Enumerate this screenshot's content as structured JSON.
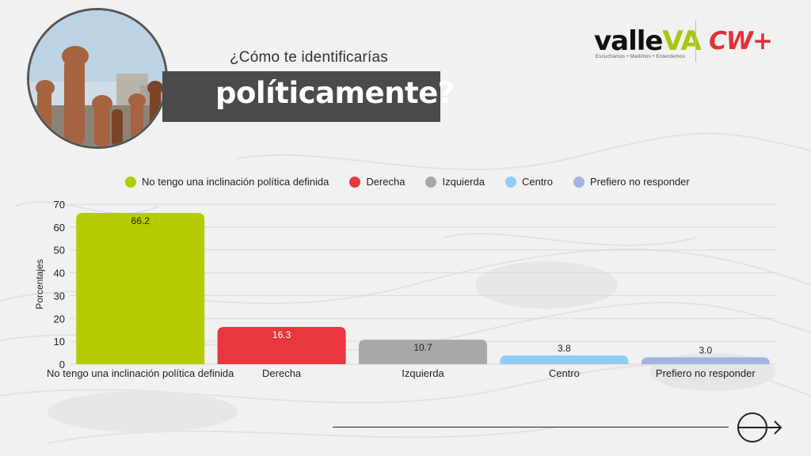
{
  "header": {
    "question_line1": "¿Cómo te identificarías",
    "question_line2": "políticamente?"
  },
  "logos": {
    "valle_prefix": "valle",
    "valle_suffix": "VA",
    "valle_tagline": "Escuchamos • Medimos • Entendemos",
    "cw_text": "CW+"
  },
  "colors": {
    "none": "#b5cc00",
    "derecha": "#e8373f",
    "izquierda": "#a8a8a8",
    "centro": "#8fcdf5",
    "no_responder": "#a3b4e2",
    "title_bar": "#4a4a4a",
    "brand_red": "#e0333b",
    "brand_green": "#a6c80f"
  },
  "chart_data": {
    "type": "bar",
    "categories": [
      "No tengo una inclinación política definida",
      "Derecha",
      "Izquierda",
      "Centro",
      "Prefiero no responder"
    ],
    "values": [
      66.2,
      16.3,
      10.7,
      3.8,
      3.0
    ],
    "value_labels": [
      "66.2",
      "16.3",
      "10.7",
      "3.8",
      "3.0"
    ],
    "legend": [
      "No tengo una inclinación política definida",
      "Derecha",
      "Izquierda",
      "Centro",
      "Prefiero no responder"
    ],
    "ylabel": "Porcentajes",
    "xlabel": "",
    "ylim": [
      0,
      70
    ],
    "yticks": [
      "0",
      "10",
      "20",
      "30",
      "40",
      "50",
      "60",
      "70"
    ],
    "grid": true,
    "legend_position": "top"
  },
  "icons": {
    "photo": "raised-fists-photo",
    "next": "arrow-right-icon"
  }
}
